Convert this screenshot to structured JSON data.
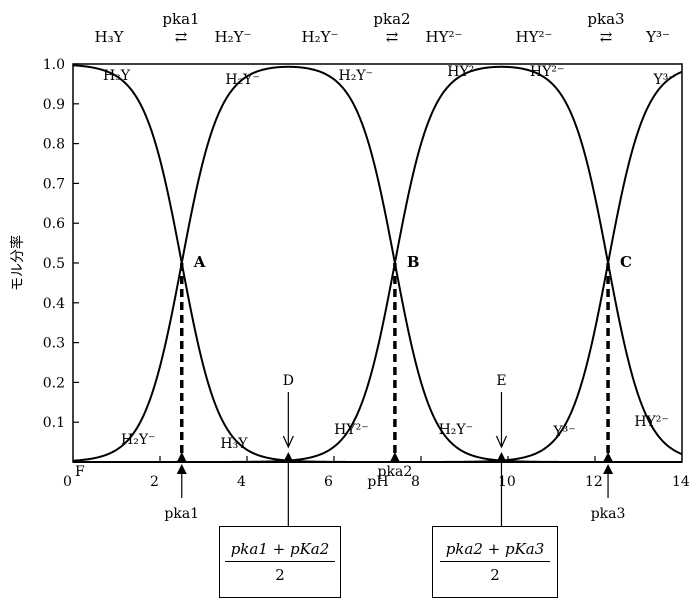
{
  "chart_data": {
    "type": "line",
    "xlabel": "pH",
    "ylabel": "モル分率",
    "xlim": [
      0,
      14
    ],
    "ylim": [
      0,
      1.0
    ],
    "x_ticks": [
      "0",
      "2",
      "4",
      "6",
      "8",
      "10",
      "12",
      "14"
    ],
    "y_ticks": [
      "0.1",
      "0.2",
      "0.3",
      "0.4",
      "0.5",
      "0.6",
      "0.7",
      "0.8",
      "0.9",
      "1.0"
    ],
    "pka": [
      2.5,
      7.4,
      12.3
    ],
    "series": [
      {
        "name": "H₃Y"
      },
      {
        "name": "H₂Y⁻"
      },
      {
        "name": "HY²⁻"
      },
      {
        "name": "Y³⁻"
      }
    ],
    "equilibria": [
      {
        "left": "H₃Y",
        "arrow": "⇄",
        "pka": "pka1",
        "right": "H₂Y⁻"
      },
      {
        "left": "H₂Y⁻",
        "arrow": "⇄",
        "pka": "pka2",
        "right": "HY²⁻"
      },
      {
        "left": "HY²⁻",
        "arrow": "⇄",
        "pka": "pka3",
        "right": "Y³⁻"
      }
    ],
    "curve_labels_top": [
      {
        "text": "H₃Y",
        "x": 1.0,
        "y": 0.96
      },
      {
        "text": "H₂Y⁻",
        "x": 3.9,
        "y": 0.95
      },
      {
        "text": "H₂Y⁻",
        "x": 6.5,
        "y": 0.96
      },
      {
        "text": "HY²⁻",
        "x": 9.0,
        "y": 0.97
      },
      {
        "text": "HY²⁻",
        "x": 10.9,
        "y": 0.97
      },
      {
        "text": "Y³⁻",
        "x": 13.6,
        "y": 0.95
      }
    ],
    "curve_labels_bottom": [
      {
        "text": "H₂Y⁻",
        "x": 1.5,
        "y": 0.045
      },
      {
        "text": "H₃Y",
        "x": 3.7,
        "y": 0.035
      },
      {
        "text": "HY²⁻",
        "x": 6.4,
        "y": 0.07
      },
      {
        "text": "H₂Y⁻",
        "x": 8.8,
        "y": 0.07
      },
      {
        "text": "Y³⁻",
        "x": 11.3,
        "y": 0.065
      },
      {
        "text": "HY²⁻",
        "x": 13.3,
        "y": 0.09
      }
    ],
    "points": [
      {
        "label": "A",
        "x": 2.5,
        "y": 0.5
      },
      {
        "label": "B",
        "x": 7.4,
        "y": 0.5
      },
      {
        "label": "C",
        "x": 12.3,
        "y": 0.5
      }
    ],
    "arrow_points": [
      {
        "label": "D",
        "x": 4.95
      },
      {
        "label": "E",
        "x": 9.85
      }
    ],
    "origin_label": "F",
    "axis_pka_labels": [
      {
        "text": "pka1",
        "x": 2.5
      },
      {
        "text": "pka2",
        "x": 7.4
      },
      {
        "text": "pka3",
        "x": 12.3
      }
    ],
    "formulas": [
      {
        "numerator": "pka1 + pKa2",
        "denominator": "2"
      },
      {
        "numerator": "pka2 + pKa3",
        "denominator": "2"
      }
    ]
  }
}
